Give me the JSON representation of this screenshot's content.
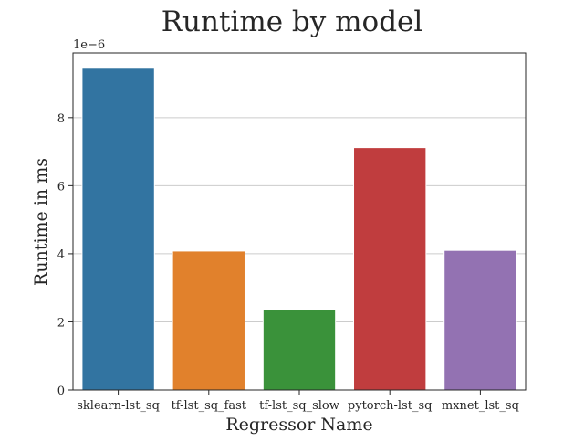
{
  "chart_data": {
    "type": "bar",
    "title": "Runtime by model",
    "xlabel": "Regressor Name",
    "ylabel": "Runtime in ms",
    "y_offset_label": "1e−6",
    "categories": [
      "sklearn-lst_sq",
      "tf-lst_sq_fast",
      "tf-lst_sq_slow",
      "pytorch-lst_sq",
      "mxnet_lst_sq"
    ],
    "values": [
      9.45,
      4.08,
      2.35,
      7.12,
      4.1
    ],
    "value_multiplier": 1e-06,
    "colors": [
      "#3274a1",
      "#e1812c",
      "#3a923a",
      "#c03d3e",
      "#9372b2"
    ],
    "ylim": [
      0,
      9.9
    ],
    "yticks": [
      0,
      2,
      4,
      6,
      8
    ],
    "grid": "horizontal",
    "legend": "none"
  }
}
